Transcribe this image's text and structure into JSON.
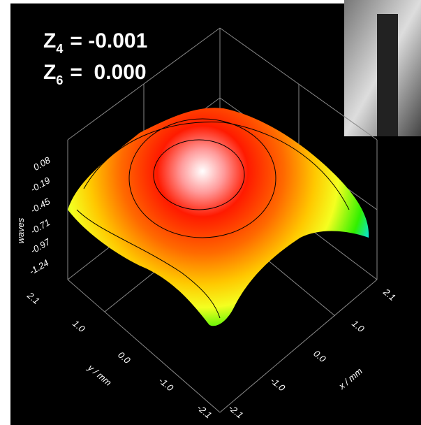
{
  "annotations": [
    {
      "symbol": "Z",
      "subscript": "4",
      "text": "= -0.001"
    },
    {
      "symbol": "Z",
      "subscript": "6",
      "text": "=  0.000"
    }
  ],
  "z_axis": {
    "label": "waves",
    "ticks": [
      "0.08",
      "-0.19",
      "-0.45",
      "-0.71",
      "-0.97",
      "-1.24"
    ]
  },
  "y_axis": {
    "label": "y / mm",
    "ticks": [
      "2.1",
      "1.0",
      "0.0",
      "-1.0",
      "-2.1"
    ]
  },
  "x_axis": {
    "label": "x / mm",
    "ticks": [
      "-2.1",
      "-1.0",
      "0.0",
      "1.0",
      "2.1"
    ]
  }
}
